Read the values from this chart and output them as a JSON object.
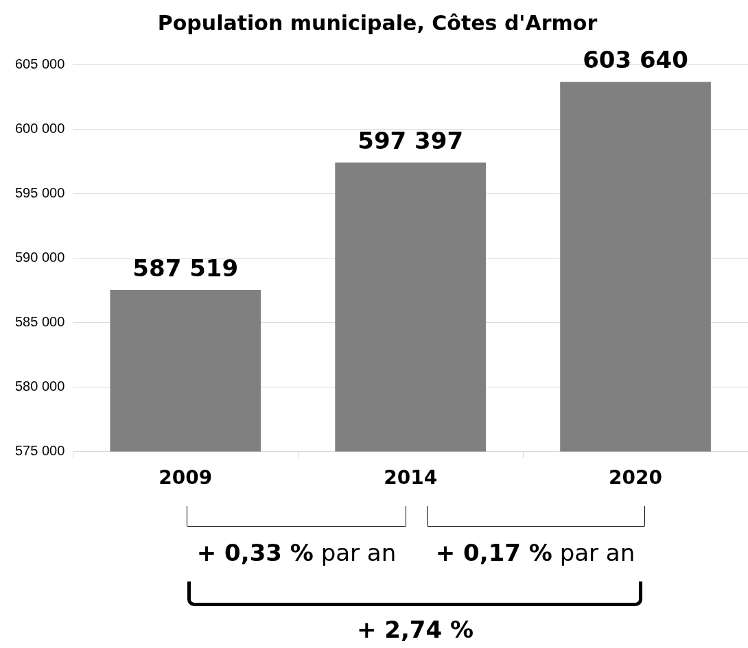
{
  "chart_data": {
    "type": "bar",
    "title": "Population municipale, Côtes d'Armor",
    "categories": [
      "2009",
      "2014",
      "2020"
    ],
    "values": [
      587519,
      597397,
      603640
    ],
    "value_labels": [
      "587 519",
      "597 397",
      "603 640"
    ],
    "color": "#808080",
    "ylim": [
      575000,
      605000
    ],
    "yticks": [
      {
        "value": 575000,
        "label": "575 000"
      },
      {
        "value": 580000,
        "label": "580 000"
      },
      {
        "value": 585000,
        "label": "585 000"
      },
      {
        "value": 590000,
        "label": "590 000"
      },
      {
        "value": 595000,
        "label": "595 000"
      },
      {
        "value": 600000,
        "label": "600 000"
      },
      {
        "value": 605000,
        "label": "605 000"
      }
    ],
    "grid": "y",
    "legend": false,
    "annotations": [
      "+ 0,33 % par an",
      "+ 0,17 % par an",
      "+ 2,74 %"
    ]
  }
}
